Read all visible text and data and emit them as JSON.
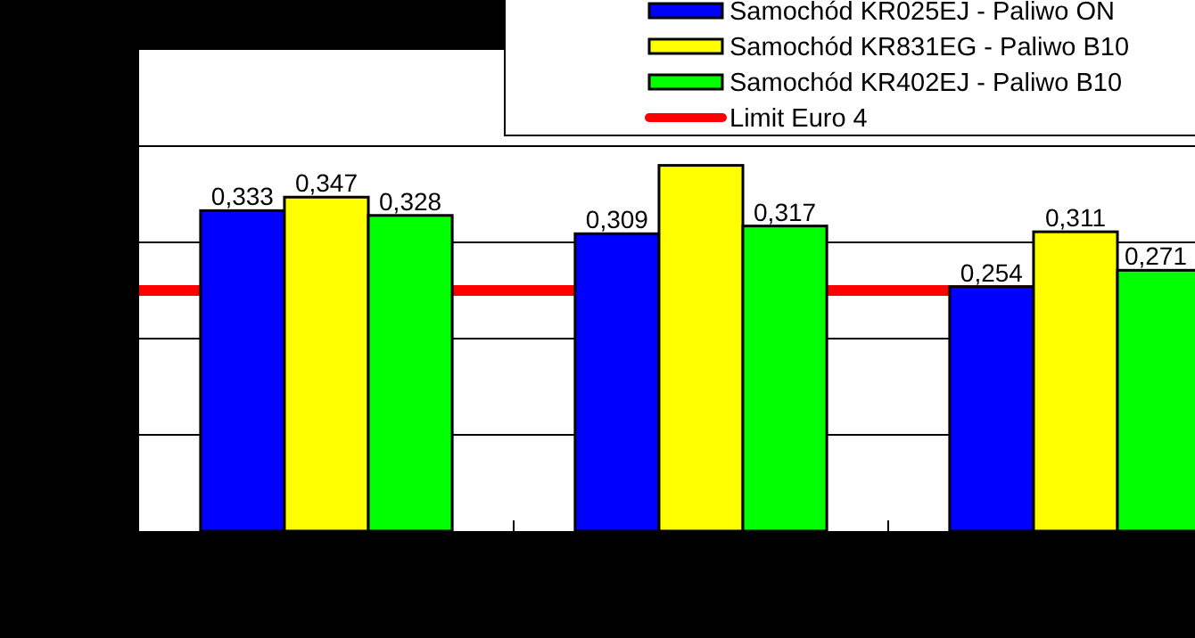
{
  "chart_data": {
    "type": "bar",
    "categories": [
      null,
      null,
      null
    ],
    "series": [
      {
        "name": "Samochód KR025EJ - Paliwo ON",
        "color": "#0000ff",
        "values": [
          0.333,
          0.309,
          0.254
        ],
        "value_labels": [
          "0,333",
          "0,309",
          "0,254"
        ]
      },
      {
        "name": "Samochód KR831EG - Paliwo B10",
        "color": "#ffff00",
        "values": [
          0.347,
          0.38,
          0.311
        ],
        "value_labels": [
          "0,347",
          null,
          "0,311"
        ]
      },
      {
        "name": "Samochód KR402EJ - Paliwo B10",
        "color": "#00ff00",
        "values": [
          0.328,
          0.317,
          0.271
        ],
        "value_labels": [
          "0,328",
          "0,317",
          "0,271"
        ]
      }
    ],
    "ref_lines": [
      {
        "axis": "y",
        "value": 0.25,
        "label": "Limit Euro 4",
        "color": "#ff0000"
      }
    ],
    "ylim": [
      0,
      0.5
    ],
    "yticks": [
      {
        "value": 0.1,
        "label": null
      },
      {
        "value": 0.2,
        "label": null
      },
      {
        "value": 0.3,
        "label": null
      },
      {
        "value": 0.4,
        "label": null
      }
    ],
    "grid": "y",
    "legend": "top right"
  }
}
